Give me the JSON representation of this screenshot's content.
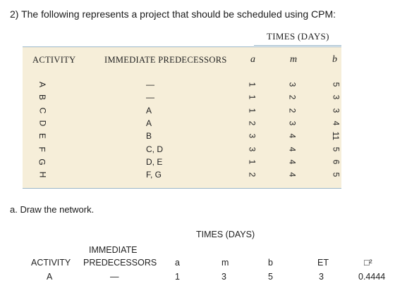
{
  "question": "2)  The following represents a project that should be scheduled using CPM:",
  "table1": {
    "times_header": "TIMES (DAYS)",
    "activity_header": "ACTIVITY",
    "pred_header": "IMMEDIATE PREDECESSORS",
    "a_header": "a",
    "m_header": "m",
    "b_header": "b",
    "rows": [
      {
        "activity": "A",
        "pred": "—",
        "a": "1",
        "m": "3",
        "b": "5"
      },
      {
        "activity": "B",
        "pred": "—",
        "a": "1",
        "m": "2",
        "b": "3"
      },
      {
        "activity": "C",
        "pred": "A",
        "a": "1",
        "m": "2",
        "b": "3"
      },
      {
        "activity": "D",
        "pred": "A",
        "a": "2",
        "m": "3",
        "b": "4"
      },
      {
        "activity": "E",
        "pred": "B",
        "a": "3",
        "m": "4",
        "b": "11"
      },
      {
        "activity": "F",
        "pred": "C, D",
        "a": "3",
        "m": "4",
        "b": "5"
      },
      {
        "activity": "G",
        "pred": "D, E",
        "a": "1",
        "m": "4",
        "b": "6"
      },
      {
        "activity": "H",
        "pred": "F, G",
        "a": "2",
        "m": "4",
        "b": "5"
      }
    ]
  },
  "subq": "a.  Draw the network.",
  "table2": {
    "times_header": "TIMES (DAYS)",
    "immediate": "IMMEDIATE",
    "activity_header": "ACTIVITY",
    "pred_header": "PREDECESSORS",
    "a_header": "a",
    "m_header": "m",
    "b_header": "b",
    "et_header": "ET",
    "var_header": "□²",
    "row": {
      "activity": "A",
      "pred": "—",
      "a": "1",
      "m": "3",
      "b": "5",
      "et": "3",
      "var": "0.4444"
    }
  }
}
